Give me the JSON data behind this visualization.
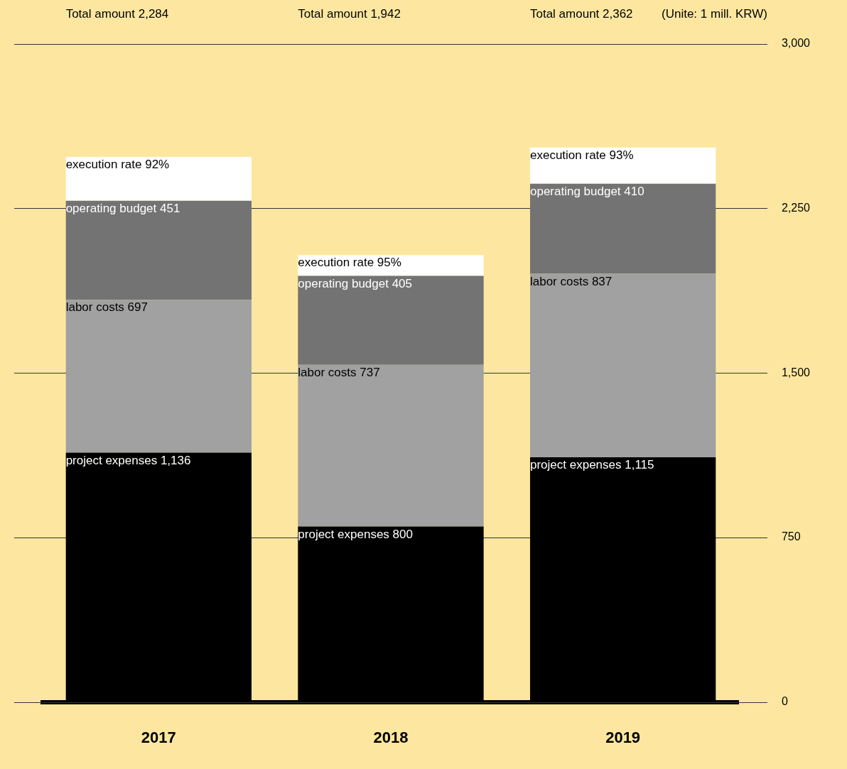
{
  "chart_data": {
    "type": "bar",
    "stacked": true,
    "categories": [
      "2017",
      "2018",
      "2019"
    ],
    "series": [
      {
        "color": "#000000",
        "values": [
          1136,
          800,
          1115
        ],
        "value_labels": [
          "project expenses 1,136",
          "project expenses 800",
          "project expenses 1,115"
        ]
      },
      {
        "color": "#a0a1a0",
        "values": [
          697,
          737,
          837
        ],
        "value_labels": [
          "labor costs 697",
          "labor costs 737",
          "labor costs 837"
        ]
      },
      {
        "color": "#737373",
        "values": [
          451,
          405,
          410
        ],
        "value_labels": [
          "operating budget 451",
          "operating budget 405",
          "operating budget 410"
        ]
      },
      {
        "color": "#ffffff",
        "values": [
          200,
          95,
          165
        ],
        "value_labels": [
          "execution rate 92%",
          "execution rate 95%",
          "execution rate 93%"
        ]
      }
    ],
    "ylim": [
      0,
      3000
    ],
    "yticks": [
      {
        "value": 0,
        "label": "0"
      },
      {
        "value": 750,
        "label": "750"
      },
      {
        "value": 1500,
        "label": "1,500"
      },
      {
        "value": 2250,
        "label": "2,250"
      },
      {
        "value": 3000,
        "label": "3,000"
      }
    ],
    "grid": "y",
    "annotations": [
      "Total amount 2,284",
      "Total amount 1,942",
      "Total amount 2,362",
      "(Unite: 1 mill. KRW)"
    ]
  }
}
